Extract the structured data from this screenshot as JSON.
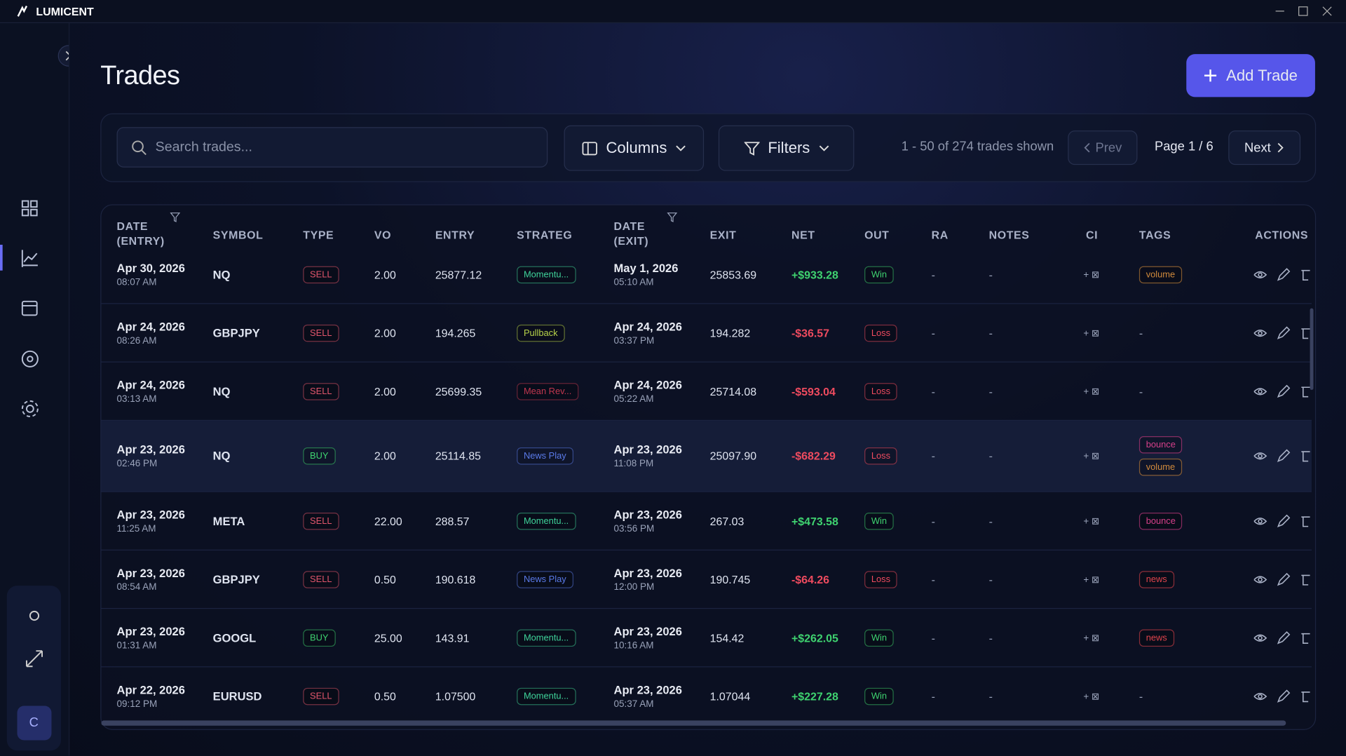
{
  "app": {
    "name": "LUMICENT",
    "avatar": "C"
  },
  "header": {
    "title": "Trades",
    "add_button": "Add Trade"
  },
  "toolbar": {
    "search_placeholder": "Search trades...",
    "columns": "Columns",
    "filters": "Filters",
    "shown": "1 - 50 of 274 trades shown",
    "prev": "Prev",
    "page": "Page 1 / 6",
    "next": "Next"
  },
  "table": {
    "headers": [
      "DATE (ENTRY)",
      "SYMBOL",
      "TYPE",
      "VO",
      "ENTRY",
      "STRATEG",
      "DATE (EXIT)",
      "EXIT",
      "NET",
      "OUT",
      "RA",
      "NOTES",
      "CI",
      "TAGS",
      "ACTIONS"
    ],
    "rows": [
      {
        "entry_date": "Apr 30, 2026",
        "entry_time": "08:07 AM",
        "symbol": "NQ",
        "type": {
          "text": "SELL",
          "color": "#e2566c"
        },
        "volume": "2.00",
        "entry": "25877.12",
        "strategy": {
          "text": "Momentu...",
          "color": "#3fd39a"
        },
        "exit_date": "May 1, 2026",
        "exit_time": "05:10 AM",
        "exit": "25853.69",
        "net": "+$933.28",
        "outcome": {
          "text": "Win",
          "color": "#3fd370"
        },
        "rating": "-",
        "notes": "-",
        "ci": "+ ⊠",
        "tags": [
          {
            "text": "volume",
            "color": "#d08a3c"
          }
        ]
      },
      {
        "entry_date": "Apr 24, 2026",
        "entry_time": "08:26 AM",
        "symbol": "GBPJPY",
        "type": {
          "text": "SELL",
          "color": "#e2566c"
        },
        "volume": "2.00",
        "entry": "194.265",
        "strategy": {
          "text": "Pullback",
          "color": "#b7d34a"
        },
        "exit_date": "Apr 24, 2026",
        "exit_time": "03:37 PM",
        "exit": "194.282",
        "net": "-$36.57",
        "outcome": {
          "text": "Loss",
          "color": "#ef4b5f"
        },
        "rating": "-",
        "notes": "-",
        "ci": "+ ⊠",
        "tags": [
          {
            "text": "-"
          }
        ]
      },
      {
        "entry_date": "Apr 24, 2026",
        "entry_time": "03:13 AM",
        "symbol": "NQ",
        "type": {
          "text": "SELL",
          "color": "#e2566c"
        },
        "volume": "2.00",
        "entry": "25699.35",
        "strategy": {
          "text": "Mean Rev...",
          "color": "#c0374f"
        },
        "exit_date": "Apr 24, 2026",
        "exit_time": "05:22 AM",
        "exit": "25714.08",
        "net": "-$593.04",
        "outcome": {
          "text": "Loss",
          "color": "#ef4b5f"
        },
        "rating": "-",
        "notes": "-",
        "ci": "+ ⊠",
        "tags": [
          {
            "text": "-"
          }
        ]
      },
      {
        "entry_date": "Apr 23, 2026",
        "entry_time": "02:46 PM",
        "symbol": "NQ",
        "type": {
          "text": "BUY",
          "color": "#3fd370"
        },
        "volume": "2.00",
        "entry": "25114.85",
        "strategy": {
          "text": "News Play",
          "color": "#5a7ae8"
        },
        "exit_date": "Apr 23, 2026",
        "exit_time": "11:08 PM",
        "exit": "25097.90",
        "net": "-$682.29",
        "outcome": {
          "text": "Loss",
          "color": "#ef4b5f"
        },
        "rating": "-",
        "notes": "-",
        "ci": "+ ⊠",
        "tags": [
          {
            "text": "bounce",
            "color": "#d6408a"
          },
          {
            "text": "volume",
            "color": "#d08a3c"
          }
        ]
      },
      {
        "entry_date": "Apr 23, 2026",
        "entry_time": "11:25 AM",
        "symbol": "META",
        "type": {
          "text": "SELL",
          "color": "#e2566c"
        },
        "volume": "22.00",
        "entry": "288.57",
        "strategy": {
          "text": "Momentu...",
          "color": "#3fd39a"
        },
        "exit_date": "Apr 23, 2026",
        "exit_time": "03:56 PM",
        "exit": "267.03",
        "net": "+$473.58",
        "outcome": {
          "text": "Win",
          "color": "#3fd370"
        },
        "rating": "-",
        "notes": "-",
        "ci": "+ ⊠",
        "tags": [
          {
            "text": "bounce",
            "color": "#d6408a"
          }
        ]
      },
      {
        "entry_date": "Apr 23, 2026",
        "entry_time": "08:54 AM",
        "symbol": "GBPJPY",
        "type": {
          "text": "SELL",
          "color": "#e2566c"
        },
        "volume": "0.50",
        "entry": "190.618",
        "strategy": {
          "text": "News Play",
          "color": "#5a7ae8"
        },
        "exit_date": "Apr 23, 2026",
        "exit_time": "12:00 PM",
        "exit": "190.745",
        "net": "-$64.26",
        "outcome": {
          "text": "Loss",
          "color": "#ef4b5f"
        },
        "rating": "-",
        "notes": "-",
        "ci": "+ ⊠",
        "tags": [
          {
            "text": "news",
            "color": "#e0444c"
          }
        ]
      },
      {
        "entry_date": "Apr 23, 2026",
        "entry_time": "01:31 AM",
        "symbol": "GOOGL",
        "type": {
          "text": "BUY",
          "color": "#3fd370"
        },
        "volume": "25.00",
        "entry": "143.91",
        "strategy": {
          "text": "Momentu...",
          "color": "#3fd39a"
        },
        "exit_date": "Apr 23, 2026",
        "exit_time": "10:16 AM",
        "exit": "154.42",
        "net": "+$262.05",
        "outcome": {
          "text": "Win",
          "color": "#3fd370"
        },
        "rating": "-",
        "notes": "-",
        "ci": "+ ⊠",
        "tags": [
          {
            "text": "news",
            "color": "#e0444c"
          }
        ]
      },
      {
        "entry_date": "Apr 22, 2026",
        "entry_time": "09:12 PM",
        "symbol": "EURUSD",
        "type": {
          "text": "SELL",
          "color": "#e2566c"
        },
        "volume": "0.50",
        "entry": "1.07500",
        "strategy": {
          "text": "Momentu...",
          "color": "#3fd39a"
        },
        "exit_date": "Apr 23, 2026",
        "exit_time": "05:37 AM",
        "exit": "1.07044",
        "net": "+$227.28",
        "outcome": {
          "text": "Win",
          "color": "#3fd370"
        },
        "rating": "-",
        "notes": "-",
        "ci": "+ ⊠",
        "tags": [
          {
            "text": "-"
          }
        ]
      }
    ]
  }
}
